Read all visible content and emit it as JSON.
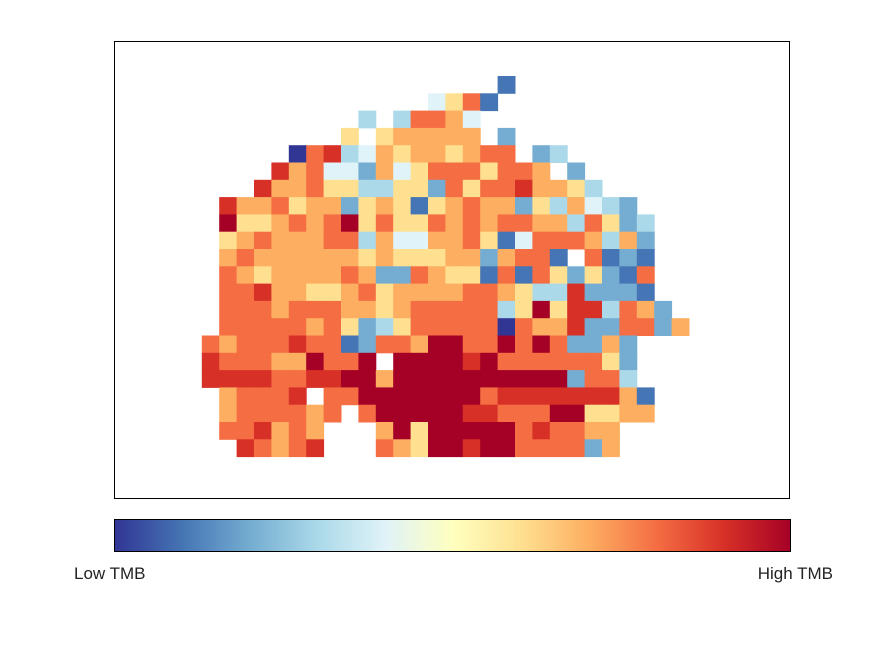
{
  "chart_data": {
    "type": "heatmap",
    "title": "",
    "colorbar": {
      "low_label": "Low TMB",
      "high_label": "High TMB",
      "colormap": "RdYlBu_r",
      "colors": [
        "#313695",
        "#4575b4",
        "#74add1",
        "#abd9e9",
        "#e0f3f8",
        "#ffffbf",
        "#fee090",
        "#fdae61",
        "#f46d43",
        "#d73027",
        "#a50026"
      ]
    },
    "grid_size": {
      "cols": 32,
      "rows": 22
    },
    "cells": [
      "...................1............",
      "...............4571.............",
      "...........3.37764..............",
      "..........5.566666.2............",
      ".......0783465665677.23.........",
      "......8674426457775776.2........",
      ".....86675533552757786653.......",
      "...866756625651567662536432.....",
      "...9556767957557676776637523....",
      "...5676667736446675147776362....",
      "...67666666565556626771.7121....",
      "...7656666762276551717525217....",
      "...7786655675666677653382221....",
      "...77767776656777773595883762....",
      "...777776752357777707668227726..",
      "..7677787712776997797972262.....",
      "..8777669779.99998977777752.....",
      "..8888778899699999999992773.....",
      "...67778.7799999997888888861....",
      "...6777767.79999988777995566....",
      "...778676...69599999787766......",
      "....87678...76599899777726......"
    ],
    "values_note": "",
    "annotations": []
  }
}
